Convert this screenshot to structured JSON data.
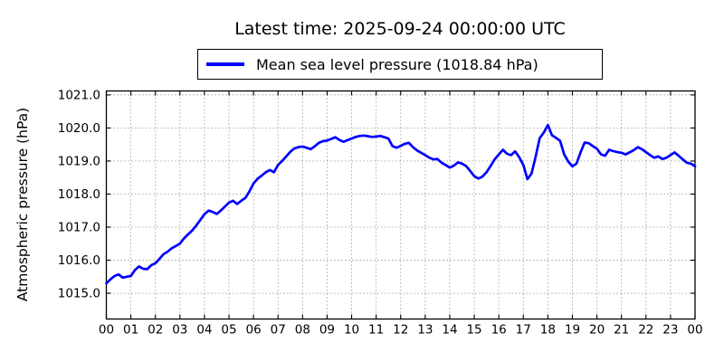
{
  "chart_data": {
    "type": "line",
    "title": "Latest time: 2025-09-24 00:00:00 UTC",
    "legend_label": "Mean sea level pressure (1018.84 hPa)",
    "legend_position": "upper center, above axes",
    "xlabel": "",
    "ylabel": "Atmospheric pressure (hPa)",
    "line_color": "#0000ff",
    "grid": "dotted",
    "xlim_hours": [
      0,
      24
    ],
    "ylim": [
      1014.22,
      1021.12
    ],
    "y_ticks": [
      1015,
      1016,
      1017,
      1018,
      1019,
      1020,
      1021
    ],
    "y_tick_labels": [
      "1015.0",
      "1016.0",
      "1017.0",
      "1018.0",
      "1019.0",
      "1020.0",
      "1021.0"
    ],
    "x_tick_labels": [
      "00",
      "01",
      "02",
      "03",
      "04",
      "05",
      "06",
      "07",
      "08",
      "09",
      "10",
      "11",
      "12",
      "13",
      "14",
      "15",
      "16",
      "17",
      "18",
      "19",
      "20",
      "21",
      "22",
      "23",
      "00"
    ],
    "latest_value_hpa": 1018.84,
    "series": [
      {
        "name": "Mean sea level pressure",
        "x_start_hour": 0,
        "x_step_minutes": 10,
        "values": [
          1015.3,
          1015.42,
          1015.52,
          1015.57,
          1015.47,
          1015.5,
          1015.52,
          1015.7,
          1015.81,
          1015.74,
          1015.73,
          1015.85,
          1015.91,
          1016.04,
          1016.18,
          1016.26,
          1016.36,
          1016.43,
          1016.5,
          1016.66,
          1016.78,
          1016.9,
          1017.05,
          1017.22,
          1017.39,
          1017.5,
          1017.46,
          1017.4,
          1017.5,
          1017.62,
          1017.74,
          1017.8,
          1017.7,
          1017.8,
          1017.88,
          1018.08,
          1018.32,
          1018.46,
          1018.56,
          1018.66,
          1018.73,
          1018.66,
          1018.88,
          1019.0,
          1019.14,
          1019.28,
          1019.38,
          1019.42,
          1019.44,
          1019.4,
          1019.36,
          1019.45,
          1019.55,
          1019.6,
          1019.62,
          1019.67,
          1019.72,
          1019.64,
          1019.58,
          1019.63,
          1019.68,
          1019.73,
          1019.76,
          1019.77,
          1019.75,
          1019.73,
          1019.74,
          1019.76,
          1019.72,
          1019.68,
          1019.45,
          1019.4,
          1019.46,
          1019.52,
          1019.55,
          1019.42,
          1019.32,
          1019.25,
          1019.18,
          1019.1,
          1019.05,
          1019.06,
          1018.95,
          1018.88,
          1018.8,
          1018.86,
          1018.96,
          1018.92,
          1018.85,
          1018.7,
          1018.54,
          1018.47,
          1018.53,
          1018.66,
          1018.85,
          1019.05,
          1019.2,
          1019.34,
          1019.22,
          1019.18,
          1019.29,
          1019.11,
          1018.88,
          1018.45,
          1018.62,
          1019.12,
          1019.69,
          1019.86,
          1020.09,
          1019.78,
          1019.7,
          1019.61,
          1019.2,
          1018.98,
          1018.84,
          1018.92,
          1019.26,
          1019.56,
          1019.54,
          1019.45,
          1019.37,
          1019.2,
          1019.16,
          1019.34,
          1019.3,
          1019.27,
          1019.25,
          1019.2,
          1019.26,
          1019.33,
          1019.42,
          1019.36,
          1019.27,
          1019.18,
          1019.1,
          1019.14,
          1019.06,
          1019.1,
          1019.18,
          1019.26,
          1019.16,
          1019.05,
          1018.95,
          1018.92,
          1018.84
        ]
      }
    ]
  }
}
